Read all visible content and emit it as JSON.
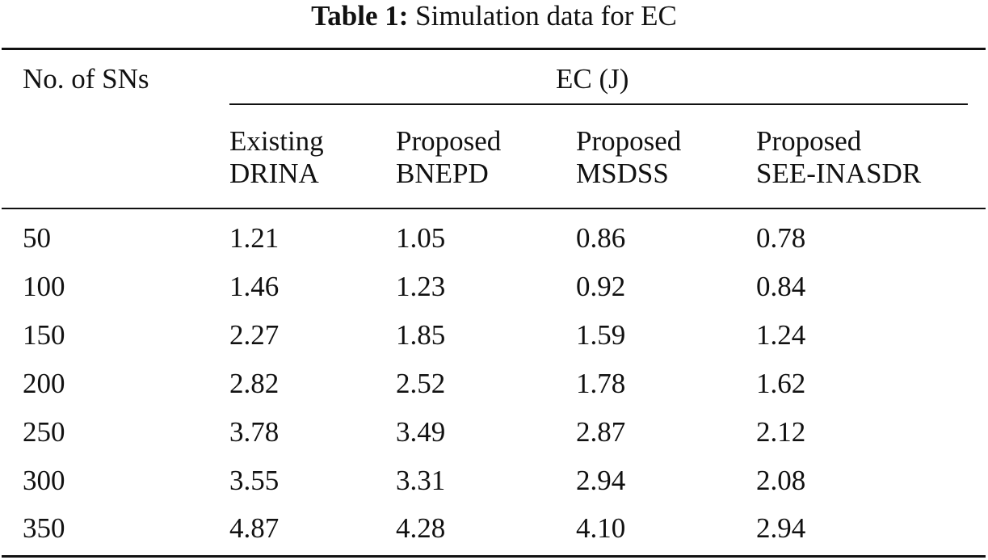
{
  "caption": {
    "label": "Table 1:",
    "text": "Simulation data for EC"
  },
  "table": {
    "row_header": "No. of SNs",
    "group_header": "EC (J)",
    "columns": [
      {
        "line1": "Existing",
        "line2": "DRINA"
      },
      {
        "line1": "Proposed",
        "line2": "BNEPD"
      },
      {
        "line1": "Proposed",
        "line2": "MSDSS"
      },
      {
        "line1": "Proposed",
        "line2": "SEE-INASDR"
      }
    ],
    "rows": [
      {
        "sns": "50",
        "values": [
          "1.21",
          "1.05",
          "0.86",
          "0.78"
        ]
      },
      {
        "sns": "100",
        "values": [
          "1.46",
          "1.23",
          "0.92",
          "0.84"
        ]
      },
      {
        "sns": "150",
        "values": [
          "2.27",
          "1.85",
          "1.59",
          "1.24"
        ]
      },
      {
        "sns": "200",
        "values": [
          "2.82",
          "2.52",
          "1.78",
          "1.62"
        ]
      },
      {
        "sns": "250",
        "values": [
          "3.78",
          "3.49",
          "2.87",
          "2.12"
        ]
      },
      {
        "sns": "300",
        "values": [
          "3.55",
          "3.31",
          "2.94",
          "2.08"
        ]
      },
      {
        "sns": "350",
        "values": [
          "4.87",
          "4.28",
          "4.10",
          "2.94"
        ]
      }
    ]
  }
}
